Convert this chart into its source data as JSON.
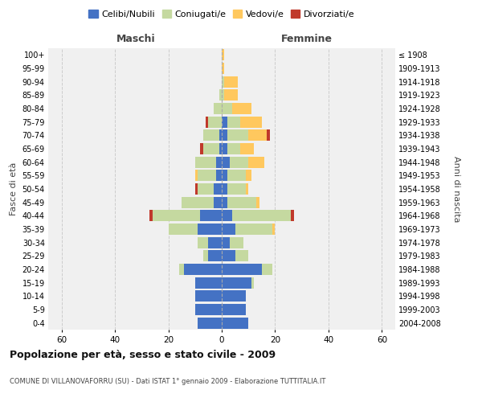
{
  "age_groups": [
    "0-4",
    "5-9",
    "10-14",
    "15-19",
    "20-24",
    "25-29",
    "30-34",
    "35-39",
    "40-44",
    "45-49",
    "50-54",
    "55-59",
    "60-64",
    "65-69",
    "70-74",
    "75-79",
    "80-84",
    "85-89",
    "90-94",
    "95-99",
    "100+"
  ],
  "birth_years": [
    "2004-2008",
    "1999-2003",
    "1994-1998",
    "1989-1993",
    "1984-1988",
    "1979-1983",
    "1974-1978",
    "1969-1973",
    "1964-1968",
    "1959-1963",
    "1954-1958",
    "1949-1953",
    "1944-1948",
    "1939-1943",
    "1934-1938",
    "1929-1933",
    "1924-1928",
    "1919-1923",
    "1914-1918",
    "1909-1913",
    "≤ 1908"
  ],
  "maschi": {
    "celibi": [
      9,
      10,
      10,
      10,
      14,
      5,
      5,
      9,
      8,
      3,
      3,
      2,
      2,
      1,
      1,
      0,
      0,
      0,
      0,
      0,
      0
    ],
    "coniugati": [
      0,
      0,
      0,
      0,
      2,
      2,
      4,
      11,
      18,
      12,
      6,
      7,
      8,
      6,
      6,
      5,
      3,
      1,
      0,
      0,
      0
    ],
    "vedovi": [
      0,
      0,
      0,
      0,
      0,
      0,
      0,
      0,
      0,
      0,
      0,
      1,
      0,
      0,
      0,
      0,
      0,
      0,
      0,
      0,
      0
    ],
    "divorziati": [
      0,
      0,
      0,
      0,
      0,
      0,
      0,
      0,
      1,
      0,
      1,
      0,
      0,
      1,
      0,
      1,
      0,
      0,
      0,
      0,
      0
    ]
  },
  "femmine": {
    "nubili": [
      10,
      9,
      9,
      11,
      15,
      5,
      3,
      5,
      4,
      2,
      2,
      2,
      3,
      2,
      2,
      2,
      0,
      0,
      0,
      0,
      0
    ],
    "coniugate": [
      0,
      0,
      0,
      1,
      4,
      5,
      5,
      14,
      22,
      11,
      7,
      7,
      7,
      5,
      8,
      5,
      4,
      1,
      1,
      0,
      0
    ],
    "vedove": [
      0,
      0,
      0,
      0,
      0,
      0,
      0,
      1,
      0,
      1,
      1,
      2,
      6,
      5,
      7,
      8,
      7,
      5,
      5,
      1,
      1
    ],
    "divorziate": [
      0,
      0,
      0,
      0,
      0,
      0,
      0,
      0,
      1,
      0,
      0,
      0,
      0,
      0,
      1,
      0,
      0,
      0,
      0,
      0,
      0
    ]
  },
  "colors": {
    "celibi": "#4472c4",
    "coniugati": "#c5d9a0",
    "vedovi": "#ffc85e",
    "divorziati": "#c0392b"
  },
  "xlim": 65,
  "title": "Popolazione per età, sesso e stato civile - 2009",
  "subtitle": "COMUNE DI VILLANOVAFORRU (SU) - Dati ISTAT 1° gennaio 2009 - Elaborazione TUTTITALIA.IT",
  "ylabel_left": "Fasce di età",
  "ylabel_right": "Anni di nascita",
  "xlabel_maschi": "Maschi",
  "xlabel_femmine": "Femmine",
  "legend_labels": [
    "Celibi/Nubili",
    "Coniugati/e",
    "Vedovi/e",
    "Divorziati/e"
  ],
  "bg_color": "#f0f0f0",
  "bar_height": 0.85
}
